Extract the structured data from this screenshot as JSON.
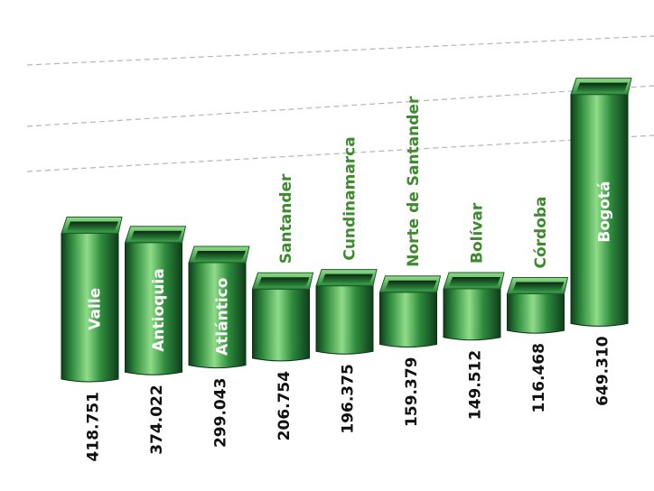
{
  "chart_data": {
    "type": "bar",
    "orientation": "vertical-3d",
    "categories": [
      "Valle",
      "Antioquia",
      "Atlántico",
      "Santander",
      "Cundinamarca",
      "Norte de Santander",
      "Bolívar",
      "Córdoba",
      "Bogotá"
    ],
    "values": [
      418751,
      374022,
      299043,
      206754,
      196375,
      159379,
      149512,
      116468,
      649310
    ],
    "value_labels": [
      "418.751",
      "374.022",
      "299.043",
      "206.754",
      "196.375",
      "159.379",
      "149.512",
      "116.468",
      "649.310"
    ],
    "label_inside_bar": [
      true,
      true,
      true,
      false,
      false,
      false,
      false,
      false,
      true
    ],
    "title": "",
    "xlabel": "",
    "ylabel": "",
    "grid": true,
    "colors": {
      "bar_dark": "#0f3d1c",
      "bar_mid": "#2e8b3c",
      "bar_light": "#8fdc8a",
      "outside_label": "#3e8a2e",
      "value_text": "#111111",
      "inside_label": "#ffffff",
      "grid": "#b5b5b5"
    }
  }
}
